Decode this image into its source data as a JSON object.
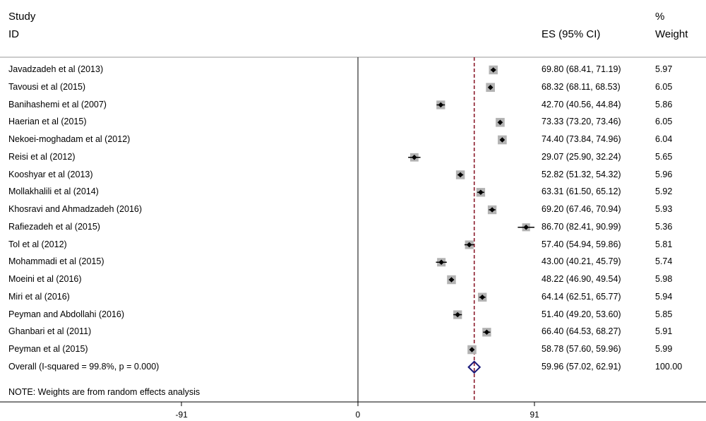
{
  "header": {
    "study_line1": "Study",
    "study_line2": "ID",
    "es_label": "ES (95% CI)",
    "weight_line1": "%",
    "weight_line2": "Weight"
  },
  "note": "NOTE: Weights are from random effects analysis",
  "chart_data": {
    "type": "forest",
    "xticks": [
      -91,
      0,
      91
    ],
    "xtick_labels": [
      "-91",
      "0",
      "91"
    ],
    "overall_line_value": 59.96,
    "studies": [
      {
        "label": "Javadzadeh et al (2013)",
        "es": 69.8,
        "lo": 68.41,
        "hi": 71.19,
        "es_text": "69.80 (68.41, 71.19)",
        "weight": "5.97"
      },
      {
        "label": "Tavousi et al (2015)",
        "es": 68.32,
        "lo": 68.11,
        "hi": 68.53,
        "es_text": "68.32 (68.11, 68.53)",
        "weight": "6.05"
      },
      {
        "label": "Banihashemi et al (2007)",
        "es": 42.7,
        "lo": 40.56,
        "hi": 44.84,
        "es_text": "42.70 (40.56, 44.84)",
        "weight": "5.86"
      },
      {
        "label": "Haerian et al (2015)",
        "es": 73.33,
        "lo": 73.2,
        "hi": 73.46,
        "es_text": "73.33 (73.20, 73.46)",
        "weight": "6.05"
      },
      {
        "label": "Nekoei-moghadam et al (2012)",
        "es": 74.4,
        "lo": 73.84,
        "hi": 74.96,
        "es_text": "74.40 (73.84, 74.96)",
        "weight": "6.04"
      },
      {
        "label": "Reisi et al (2012)",
        "es": 29.07,
        "lo": 25.9,
        "hi": 32.24,
        "es_text": "29.07 (25.90, 32.24)",
        "weight": "5.65"
      },
      {
        "label": "Kooshyar et al (2013)",
        "es": 52.82,
        "lo": 51.32,
        "hi": 54.32,
        "es_text": "52.82 (51.32, 54.32)",
        "weight": "5.96"
      },
      {
        "label": "Mollakhalili et al (2014)",
        "es": 63.31,
        "lo": 61.5,
        "hi": 65.12,
        "es_text": "63.31 (61.50, 65.12)",
        "weight": "5.92"
      },
      {
        "label": "Khosravi and Ahmadzadeh (2016)",
        "es": 69.2,
        "lo": 67.46,
        "hi": 70.94,
        "es_text": "69.20 (67.46, 70.94)",
        "weight": "5.93"
      },
      {
        "label": "Rafiezadeh et al (2015)",
        "es": 86.7,
        "lo": 82.41,
        "hi": 90.99,
        "es_text": "86.70 (82.41, 90.99)",
        "weight": "5.36"
      },
      {
        "label": "Tol et al (2012)",
        "es": 57.4,
        "lo": 54.94,
        "hi": 59.86,
        "es_text": "57.40 (54.94, 59.86)",
        "weight": "5.81"
      },
      {
        "label": "Mohammadi et al (2015)",
        "es": 43.0,
        "lo": 40.21,
        "hi": 45.79,
        "es_text": "43.00 (40.21, 45.79)",
        "weight": "5.74"
      },
      {
        "label": "Moeini et al (2016)",
        "es": 48.22,
        "lo": 46.9,
        "hi": 49.54,
        "es_text": "48.22 (46.90, 49.54)",
        "weight": "5.98"
      },
      {
        "label": "Miri et al (2016)",
        "es": 64.14,
        "lo": 62.51,
        "hi": 65.77,
        "es_text": "64.14 (62.51, 65.77)",
        "weight": "5.94"
      },
      {
        "label": "Peyman and Abdollahi (2016)",
        "es": 51.4,
        "lo": 49.2,
        "hi": 53.6,
        "es_text": "51.40 (49.20, 53.60)",
        "weight": "5.85"
      },
      {
        "label": "Ghanbari et al (2011)",
        "es": 66.4,
        "lo": 64.53,
        "hi": 68.27,
        "es_text": "66.40 (64.53, 68.27)",
        "weight": "5.91"
      },
      {
        "label": "Peyman et al (2015)",
        "es": 58.78,
        "lo": 57.6,
        "hi": 59.96,
        "es_text": "58.78 (57.60, 59.96)",
        "weight": "5.99"
      }
    ],
    "overall": {
      "label": "Overall  (I-squared = 99.8%, p = 0.000)",
      "es": 59.96,
      "lo": 57.02,
      "hi": 62.91,
      "es_text": "59.96 (57.02, 62.91)",
      "weight": "100.00"
    },
    "colors": {
      "marker": "#000000",
      "box": "#b3b3b3",
      "overall_line": "#8b1a2b",
      "diamond": "#1a1a7a",
      "axis": "#000000"
    }
  }
}
